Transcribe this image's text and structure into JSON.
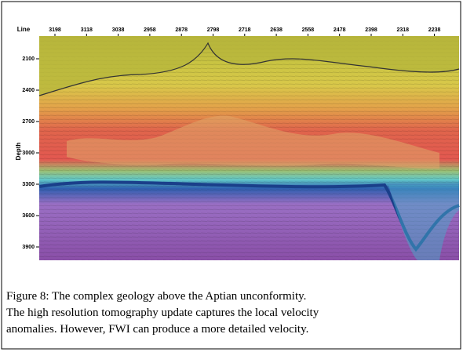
{
  "figure": {
    "x_axis_label": "Line",
    "x_labels": [
      "3198",
      "3118",
      "3038",
      "2958",
      "2878",
      "2798",
      "2718",
      "2638",
      "2558",
      "2478",
      "2398",
      "2318",
      "2238"
    ],
    "y_axis_label": "Depth",
    "y_labels": [
      "2100",
      "2400",
      "2700",
      "3000",
      "3300",
      "3600",
      "3900"
    ],
    "caption_lines": [
      "Figure 8: The complex geology above the Aptian unconformity.",
      "The high resolution tomography update captures the local velocity",
      "anomalies. However, FWI can produce a more detailed velocity."
    ]
  }
}
